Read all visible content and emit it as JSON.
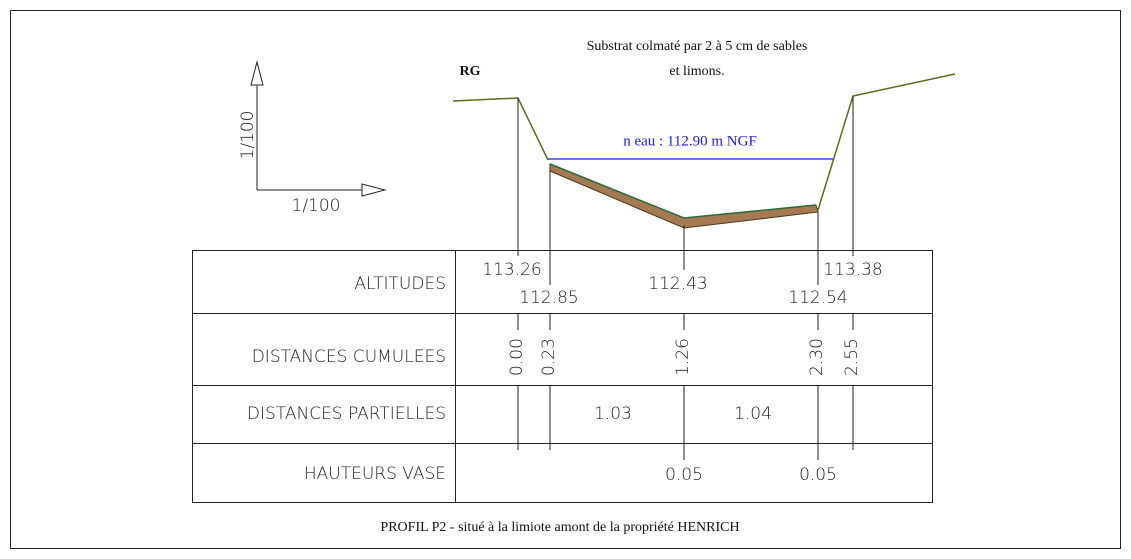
{
  "drawing": {
    "note": [
      "Substrat colmaté par 2 à 5 cm de sables",
      "et limons."
    ],
    "bank_label": "RG",
    "water_level": "n eau : 112.90 m NGF",
    "scale": {
      "vertical": "1/100",
      "horizontal": "1/100"
    },
    "caption": "PROFIL P2  - situé à la limiote amont de la propriété HENRICH"
  },
  "table": {
    "rows": [
      "ALTITUDES",
      "DISTANCES CUMULEES",
      "DISTANCES PARTIELLES",
      "HAUTEURS VASE"
    ],
    "altitudes": [
      "113.26",
      "112.85",
      "112.43",
      "112.54",
      "113.38"
    ],
    "distances_cumulees": [
      "0.00",
      "0.23",
      "1.26",
      "2.30",
      "2.55"
    ],
    "distances_partielles": [
      "1.03",
      "1.04"
    ],
    "hauteurs_vase": [
      "0.05",
      "0.05"
    ]
  }
}
